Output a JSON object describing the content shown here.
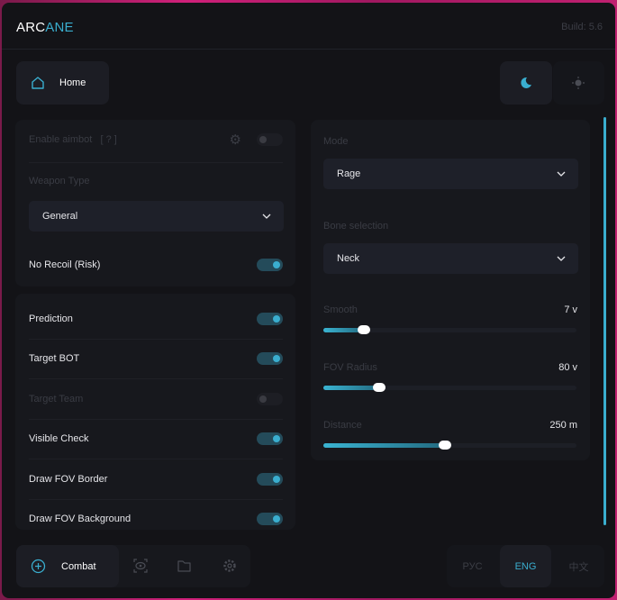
{
  "header": {
    "logo_left": "ARC",
    "logo_right": "ANE",
    "build": "Build: 5.6"
  },
  "top_nav": {
    "home_label": "Home",
    "home_icon": "home-icon",
    "theme_dark_icon": "moon-icon",
    "theme_light_icon": "sun-icon",
    "theme_selected": "dark"
  },
  "aimbot": {
    "enable_label": "Enable aimbot",
    "help": "[ ? ]",
    "enabled": false,
    "weapon_type_label": "Weapon Type",
    "weapon_type": "General",
    "no_recoil_label": "No Recoil (Risk)",
    "no_recoil": true
  },
  "options": [
    {
      "label": "Prediction",
      "on": true,
      "disabled": false
    },
    {
      "label": "Target BOT",
      "on": true,
      "disabled": false
    },
    {
      "label": "Target Team",
      "on": false,
      "disabled": true
    },
    {
      "label": "Visible Check",
      "on": true,
      "disabled": false
    },
    {
      "label": "Draw FOV Border",
      "on": true,
      "disabled": false
    },
    {
      "label": "Draw FOV Background",
      "on": true,
      "disabled": false
    }
  ],
  "settings": {
    "mode_label": "Mode",
    "mode": "Rage",
    "bone_label": "Bone selection",
    "bone": "Neck",
    "sliders": [
      {
        "label": "Smooth",
        "value": "7 v",
        "fraction": 0.16
      },
      {
        "label": "FOV Radius",
        "value": "80 v",
        "fraction": 0.22
      },
      {
        "label": "Distance",
        "value": "250 m",
        "fraction": 0.48
      }
    ]
  },
  "bottom_nav": {
    "active_label": "Combat",
    "icons": [
      "crosshair-icon",
      "eye-scan-icon",
      "folder-icon",
      "gear-icon"
    ]
  },
  "languages": [
    "РУС",
    "ENG",
    "中文"
  ],
  "selected_language": "ENG",
  "colors": {
    "accent": "#3aaecf",
    "background": "#131317",
    "card": "#17181d"
  }
}
